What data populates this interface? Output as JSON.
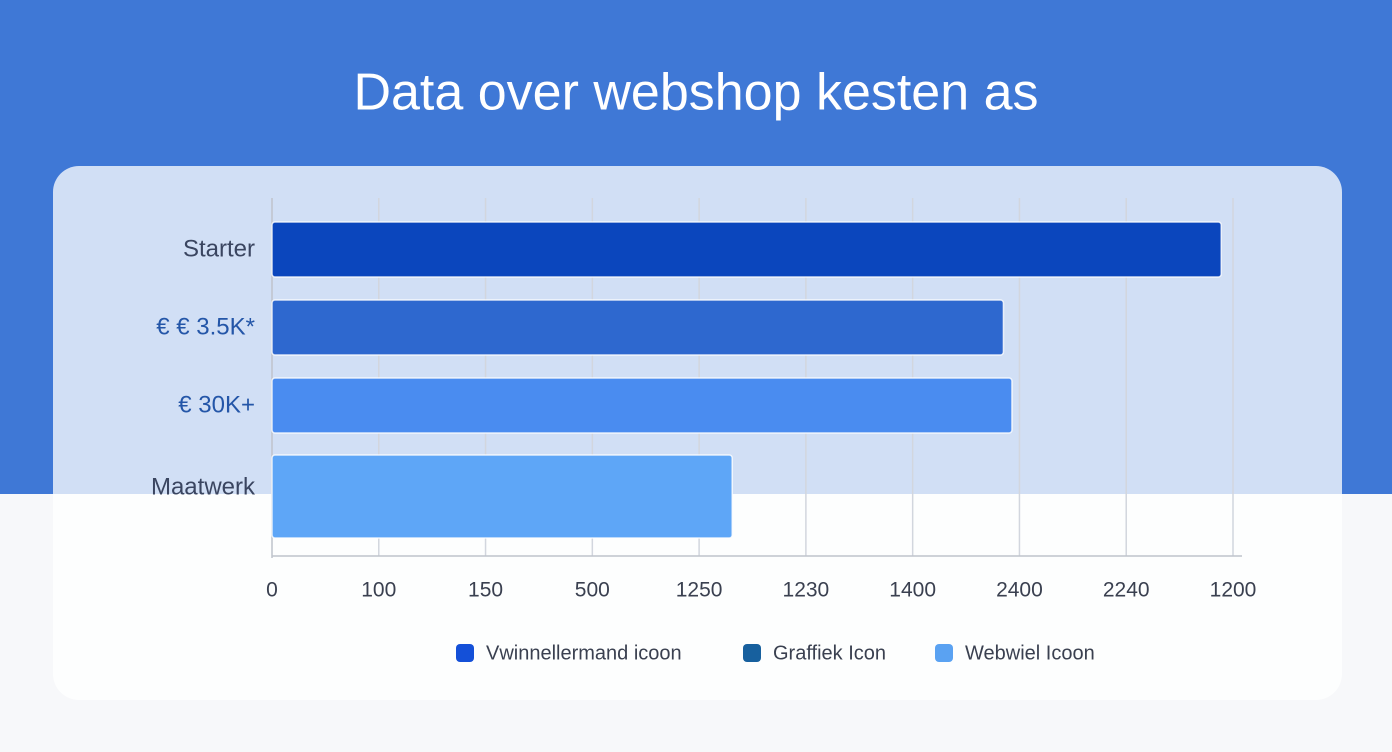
{
  "chart_data": {
    "type": "bar",
    "orientation": "horizontal",
    "title": "Data over webshop kesten as",
    "categories": [
      "Starter",
      "€ € 3.5K*",
      "€ 30K+",
      "Maatwerk"
    ],
    "values": [
      8.89,
      6.85,
      6.93,
      4.31
    ],
    "colors": [
      "#0b46bd",
      "#2e68cf",
      "#4a8cf0",
      "#5ea6f7"
    ],
    "xlim": [
      0,
      9
    ],
    "xticks": [
      {
        "value": 0,
        "label": "0"
      },
      {
        "value": 1,
        "label": "100"
      },
      {
        "value": 2,
        "label": "150"
      },
      {
        "value": 3,
        "label": "500"
      },
      {
        "value": 4,
        "label": "1250"
      },
      {
        "value": 5,
        "label": "1230"
      },
      {
        "value": 6,
        "label": "1400"
      },
      {
        "value": 7,
        "label": "2400"
      },
      {
        "value": 8,
        "label": "2240"
      },
      {
        "value": 9,
        "label": "1200"
      }
    ],
    "grid": true,
    "legend": [
      {
        "name": "Vwinnellermand icoon",
        "color": "#1450d8"
      },
      {
        "name": "Graffiek Icon",
        "color": "#17609e"
      },
      {
        "name": "Webwiel Icoon",
        "color": "#5aa2f2"
      }
    ]
  }
}
